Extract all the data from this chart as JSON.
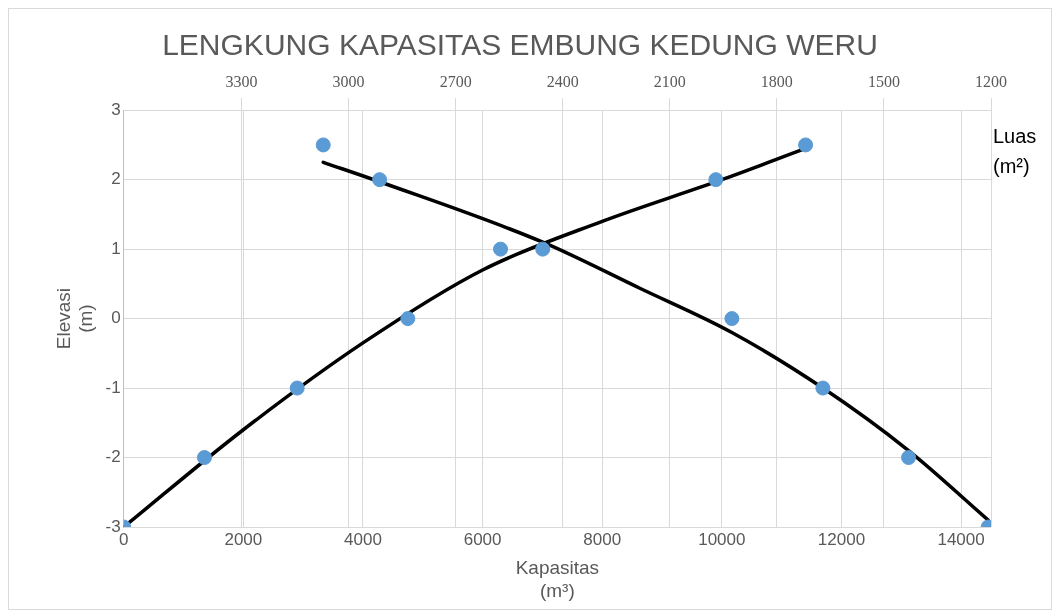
{
  "chart_data": {
    "type": "scatter",
    "title": "LENGKUNG KAPASITAS EMBUNG KEDUNG WERU",
    "xlabel": "Kapasitas (m³)",
    "ylabel": "Elevasi (m)",
    "x2label": "Luas (m²)",
    "xlim": [
      0,
      14500
    ],
    "xticks": [
      0,
      2000,
      4000,
      6000,
      8000,
      10000,
      12000,
      14000
    ],
    "x2lim": [
      3630,
      1200
    ],
    "x2ticks": [
      3300,
      3000,
      2700,
      2400,
      2100,
      1800,
      1500,
      1200
    ],
    "ylim": [
      -3,
      3
    ],
    "yticks": [
      -3,
      -2,
      -1,
      0,
      1,
      2,
      3
    ],
    "grid": true,
    "marker": "circle",
    "series": [
      {
        "color": "#5b9bd5",
        "x": [
          0,
          1350,
          2900,
          4750,
          6300,
          9900,
          11400
        ],
        "values": [
          -3,
          -2,
          -1,
          0,
          1,
          2,
          2.5
        ]
      },
      {
        "axis": "x2",
        "color": "#5b9bd5",
        "x": [
          3071,
          2913,
          2456,
          1926,
          1671,
          1431,
          1208
        ],
        "values": [
          2.5,
          2,
          1,
          0,
          -1,
          -2,
          -3
        ]
      },
      {
        "type": "line",
        "color": "#000000",
        "marker": "none",
        "x": [
          0,
          2000,
          4000,
          6000,
          8000,
          10000,
          11400
        ],
        "values": [
          -3,
          -1.6,
          -0.35,
          0.7,
          1.4,
          2.0,
          2.45
        ]
      },
      {
        "type": "line",
        "axis": "x2",
        "color": "#000000",
        "marker": "none",
        "x": [
          3071,
          2913,
          2456,
          2181,
          1926,
          1671,
          1431,
          1208
        ],
        "values": [
          2.25,
          1.97,
          1.1,
          0.43,
          -0.2,
          -1.0,
          -1.9,
          -2.9
        ]
      }
    ]
  }
}
